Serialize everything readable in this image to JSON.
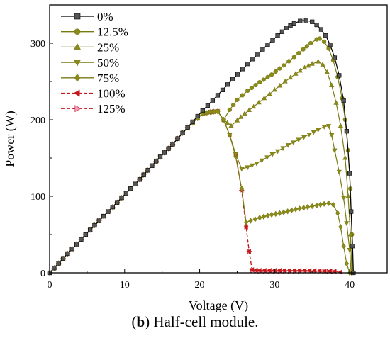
{
  "chart_data": {
    "type": "line",
    "xlabel": "Voltage (V)",
    "ylabel": "Power (W)",
    "xlim": [
      0,
      45
    ],
    "ylim": [
      0,
      350
    ],
    "xticks": [
      0,
      10,
      20,
      30,
      40
    ],
    "yticks": [
      0,
      100,
      200,
      300
    ],
    "grid": false,
    "legend_position": "top-left",
    "series": [
      {
        "name": "0%",
        "color": "#000000",
        "marker": "square",
        "marker_color": "#555555",
        "dash": false,
        "points": [
          [
            0,
            0
          ],
          [
            2.4,
            25
          ],
          [
            4.8,
            50
          ],
          [
            7.2,
            74
          ],
          [
            9.6,
            98
          ],
          [
            12,
            122
          ],
          [
            14.2,
            146
          ],
          [
            16.4,
            168
          ],
          [
            18.4,
            190
          ],
          [
            20.4,
            212
          ],
          [
            22.4,
            232
          ],
          [
            24.4,
            253
          ],
          [
            26.4,
            273
          ],
          [
            28.4,
            292
          ],
          [
            30.4,
            310
          ],
          [
            31.6,
            320
          ],
          [
            32.6,
            326
          ],
          [
            33.4,
            329
          ],
          [
            34.2,
            330
          ],
          [
            35,
            328
          ],
          [
            35.6,
            324
          ],
          [
            36.2,
            318
          ],
          [
            36.8,
            310
          ],
          [
            37.4,
            298
          ],
          [
            38,
            281
          ],
          [
            38.6,
            258
          ],
          [
            39.2,
            225
          ],
          [
            39.6,
            185
          ],
          [
            40,
            130
          ],
          [
            40.2,
            80
          ],
          [
            40.4,
            35
          ],
          [
            40.5,
            0
          ]
        ]
      },
      {
        "name": "12.5%",
        "color": "#7a7a12",
        "marker": "circle",
        "marker_color": "#8b8b1a",
        "dash": false,
        "points": [
          [
            0,
            0
          ],
          [
            2.4,
            25
          ],
          [
            4.8,
            50
          ],
          [
            7.2,
            74
          ],
          [
            9.6,
            98
          ],
          [
            12,
            122
          ],
          [
            14.2,
            146
          ],
          [
            16.4,
            168
          ],
          [
            18.4,
            190
          ],
          [
            20.4,
            208
          ],
          [
            21.4,
            210
          ],
          [
            22.4,
            211
          ],
          [
            23.2,
            200
          ],
          [
            24,
            213
          ],
          [
            25,
            226
          ],
          [
            26.4,
            238
          ],
          [
            28,
            249
          ],
          [
            29.6,
            259
          ],
          [
            31.2,
            271
          ],
          [
            32.6,
            282
          ],
          [
            33.8,
            292
          ],
          [
            34.8,
            300
          ],
          [
            35.6,
            305
          ],
          [
            36,
            306
          ],
          [
            36.6,
            302
          ],
          [
            37.2,
            293
          ],
          [
            37.8,
            278
          ],
          [
            38.4,
            256
          ],
          [
            39,
            228
          ],
          [
            39.4,
            200
          ],
          [
            39.8,
            160
          ],
          [
            40.1,
            110
          ],
          [
            40.3,
            50
          ],
          [
            40.4,
            0
          ]
        ]
      },
      {
        "name": "25%",
        "color": "#7a7a12",
        "marker": "triangle-up",
        "marker_color": "#8b8b1a",
        "dash": false,
        "points": [
          [
            0,
            0
          ],
          [
            2.4,
            25
          ],
          [
            4.8,
            50
          ],
          [
            7.2,
            74
          ],
          [
            9.6,
            98
          ],
          [
            12,
            122
          ],
          [
            14.2,
            146
          ],
          [
            16.4,
            168
          ],
          [
            18.4,
            190
          ],
          [
            20.4,
            208
          ],
          [
            21.4,
            210
          ],
          [
            22.4,
            211
          ],
          [
            23.2,
            200
          ],
          [
            24.2,
            192
          ],
          [
            25,
            199
          ],
          [
            26,
            208
          ],
          [
            27.2,
            217
          ],
          [
            28.6,
            228
          ],
          [
            30,
            239
          ],
          [
            31.4,
            250
          ],
          [
            32.8,
            260
          ],
          [
            34,
            268
          ],
          [
            35,
            273
          ],
          [
            35.8,
            276
          ],
          [
            36.4,
            272
          ],
          [
            37,
            262
          ],
          [
            37.6,
            245
          ],
          [
            38.2,
            222
          ],
          [
            38.8,
            192
          ],
          [
            39.4,
            150
          ],
          [
            39.8,
            100
          ],
          [
            40.1,
            50
          ],
          [
            40.3,
            0
          ]
        ]
      },
      {
        "name": "50%",
        "color": "#7a7a12",
        "marker": "triangle-down",
        "marker_color": "#8b8b1a",
        "dash": false,
        "points": [
          [
            0,
            0
          ],
          [
            2.4,
            25
          ],
          [
            4.8,
            50
          ],
          [
            7.2,
            74
          ],
          [
            9.6,
            98
          ],
          [
            12,
            122
          ],
          [
            14.2,
            146
          ],
          [
            16.4,
            168
          ],
          [
            18.4,
            190
          ],
          [
            20.4,
            208
          ],
          [
            21.4,
            210
          ],
          [
            22.4,
            211
          ],
          [
            23.2,
            200
          ],
          [
            24,
            180
          ],
          [
            24.8,
            155
          ],
          [
            25.6,
            136
          ],
          [
            26.4,
            138
          ],
          [
            27.6,
            143
          ],
          [
            29,
            151
          ],
          [
            30.4,
            159
          ],
          [
            31.8,
            167
          ],
          [
            33.2,
            174
          ],
          [
            34.6,
            181
          ],
          [
            35.8,
            187
          ],
          [
            36.6,
            191
          ],
          [
            37.2,
            192
          ],
          [
            37.6,
            180
          ],
          [
            38,
            160
          ],
          [
            38.6,
            132
          ],
          [
            39.2,
            98
          ],
          [
            39.6,
            65
          ],
          [
            40,
            30
          ],
          [
            40.2,
            0
          ]
        ]
      },
      {
        "name": "75%",
        "color": "#7a7a12",
        "marker": "diamond",
        "marker_color": "#8b8b1a",
        "dash": false,
        "points": [
          [
            0,
            0
          ],
          [
            2.4,
            25
          ],
          [
            4.8,
            50
          ],
          [
            7.2,
            74
          ],
          [
            9.6,
            98
          ],
          [
            12,
            122
          ],
          [
            14.2,
            146
          ],
          [
            16.4,
            168
          ],
          [
            18.4,
            190
          ],
          [
            20.4,
            208
          ],
          [
            21.4,
            210
          ],
          [
            22.4,
            211
          ],
          [
            23.2,
            200
          ],
          [
            24,
            180
          ],
          [
            24.8,
            152
          ],
          [
            25.6,
            110
          ],
          [
            26.2,
            66
          ],
          [
            26.8,
            68
          ],
          [
            28,
            72
          ],
          [
            29.6,
            76
          ],
          [
            31.2,
            79
          ],
          [
            32.8,
            83
          ],
          [
            34.4,
            86
          ],
          [
            35.6,
            88
          ],
          [
            36.6,
            90
          ],
          [
            37.2,
            91
          ],
          [
            37.8,
            89
          ],
          [
            38.4,
            78
          ],
          [
            38.8,
            60
          ],
          [
            39.2,
            35
          ],
          [
            39.6,
            12
          ],
          [
            40,
            0
          ]
        ]
      },
      {
        "name": "100%",
        "color": "#c4181a",
        "marker": "triangle-left",
        "marker_color": "#c4181a",
        "dash": true,
        "points": [
          [
            0,
            0
          ],
          [
            2.4,
            25
          ],
          [
            4.8,
            50
          ],
          [
            7.2,
            74
          ],
          [
            9.6,
            98
          ],
          [
            12,
            122
          ],
          [
            14.2,
            146
          ],
          [
            16.4,
            168
          ],
          [
            18.4,
            190
          ],
          [
            20.4,
            208
          ],
          [
            21.4,
            210
          ],
          [
            22.4,
            211
          ],
          [
            23.2,
            200
          ],
          [
            24,
            180
          ],
          [
            24.8,
            155
          ],
          [
            25.6,
            108
          ],
          [
            26.2,
            60
          ],
          [
            26.6,
            28
          ],
          [
            27,
            4
          ],
          [
            28,
            3
          ],
          [
            30,
            3
          ],
          [
            32,
            3
          ],
          [
            34,
            3
          ],
          [
            36,
            2.5
          ],
          [
            38,
            2
          ],
          [
            38.8,
            1
          ]
        ]
      },
      {
        "name": "125%",
        "color": "#c4181a",
        "marker": "triangle-right",
        "marker_color": "#f0a0c8",
        "dash": true,
        "points": [
          [
            0,
            0
          ],
          [
            2.4,
            25
          ],
          [
            4.8,
            50
          ],
          [
            7.2,
            74
          ],
          [
            9.6,
            98
          ],
          [
            12,
            122
          ],
          [
            14.2,
            146
          ],
          [
            16.4,
            168
          ],
          [
            18.4,
            190
          ],
          [
            20.4,
            208
          ],
          [
            21.4,
            210
          ],
          [
            22.4,
            211
          ],
          [
            23.2,
            200
          ],
          [
            24,
            180
          ],
          [
            24.8,
            155
          ],
          [
            25.6,
            108
          ],
          [
            26.2,
            60
          ],
          [
            26.6,
            28
          ],
          [
            27,
            3
          ],
          [
            28,
            2
          ],
          [
            30,
            2
          ],
          [
            32,
            2
          ],
          [
            34,
            2
          ],
          [
            36,
            2
          ],
          [
            37.8,
            1.5
          ]
        ]
      }
    ]
  },
  "caption": {
    "letter": "b",
    "rest": ") Half-cell module.",
    "open": "("
  }
}
